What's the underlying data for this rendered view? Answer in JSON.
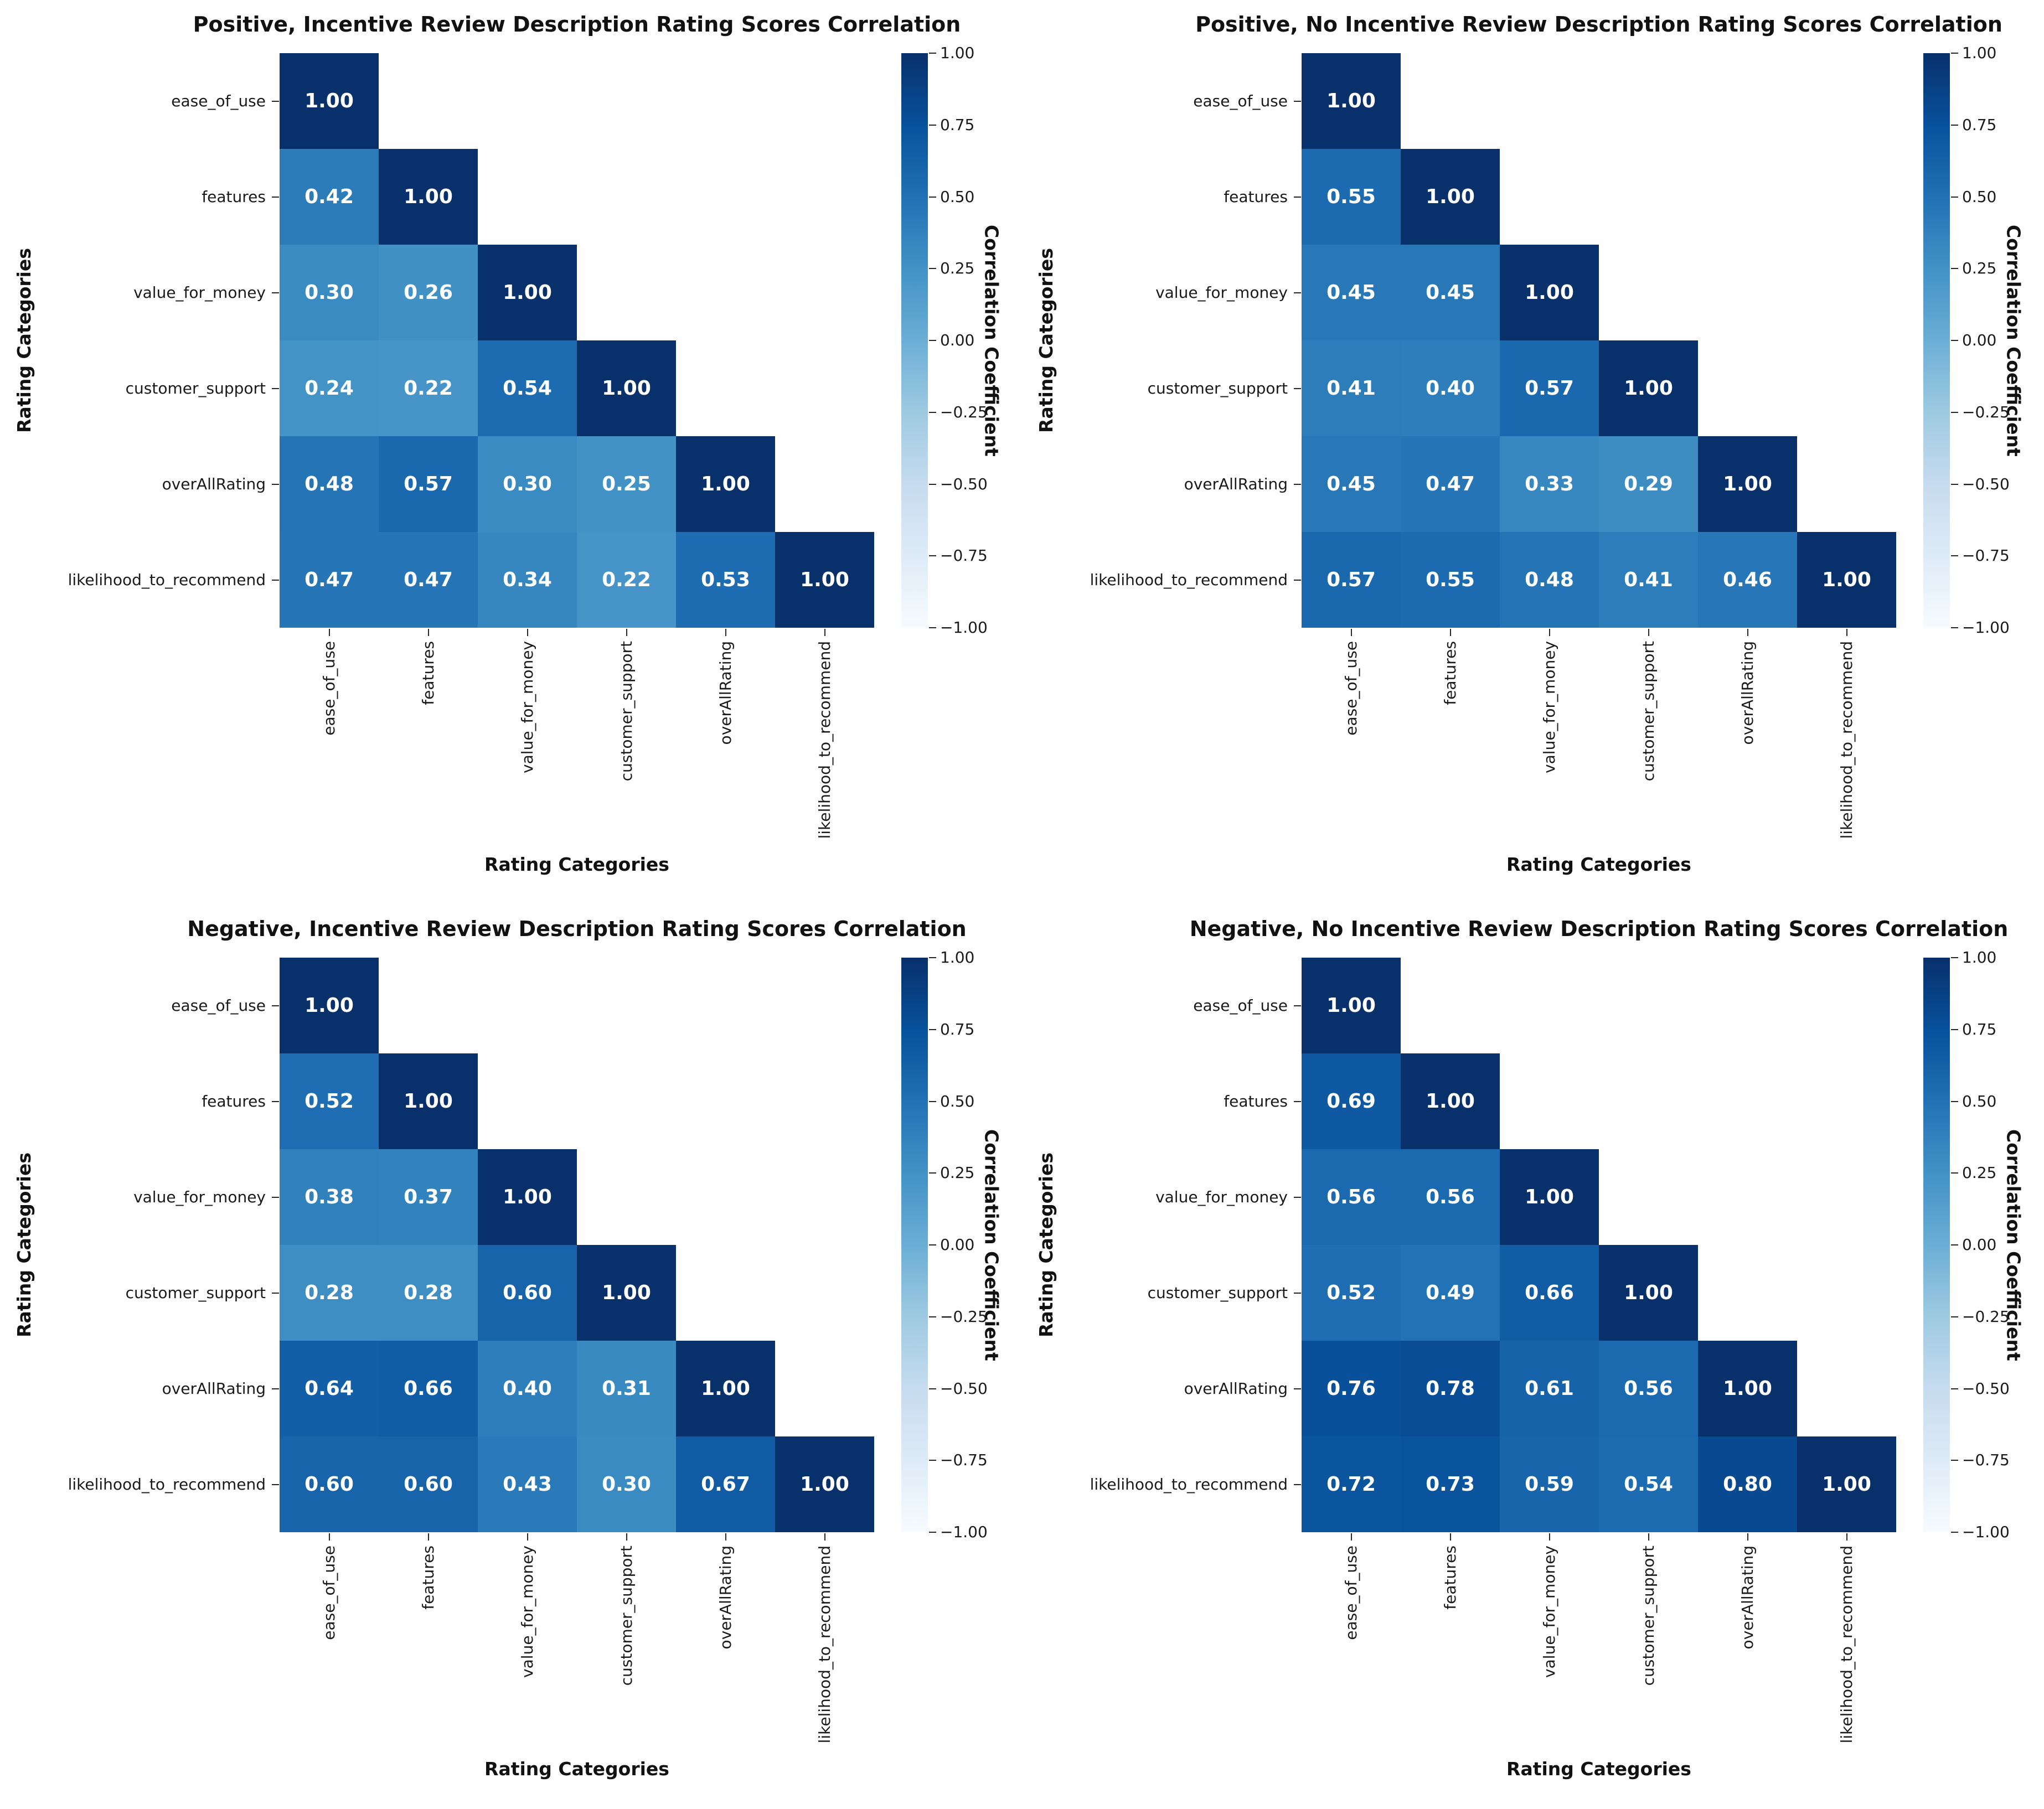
{
  "figure": {
    "background": "#ffffff",
    "shared_xlabel": "Rating Categories",
    "shared_ylabel": "Rating Categories",
    "shared_colorbar_label": "Correlation Coefficient",
    "colorbar_ticks": [
      {
        "value": 1.0,
        "label": "1.00"
      },
      {
        "value": 0.75,
        "label": "0.75"
      },
      {
        "value": 0.5,
        "label": "0.50"
      },
      {
        "value": 0.25,
        "label": "0.25"
      },
      {
        "value": 0.0,
        "label": "0.00"
      },
      {
        "value": -0.25,
        "label": "−0.25"
      },
      {
        "value": -0.5,
        "label": "−0.50"
      },
      {
        "value": -0.75,
        "label": "−0.75"
      },
      {
        "value": -1.0,
        "label": "−1.00"
      }
    ]
  },
  "colors": {
    "annot_text": "#ffffff",
    "tick_text": "#1a1a1a",
    "title_text": "#111111",
    "cmap_name": "Blues",
    "cmap_anchors": [
      [
        0.0,
        "#f7fbff"
      ],
      [
        0.125,
        "#deebf7"
      ],
      [
        0.25,
        "#c6dbef"
      ],
      [
        0.375,
        "#9ecae1"
      ],
      [
        0.5,
        "#6baed6"
      ],
      [
        0.625,
        "#4292c6"
      ],
      [
        0.75,
        "#2171b5"
      ],
      [
        0.875,
        "#08519c"
      ],
      [
        1.0,
        "#08306b"
      ]
    ]
  },
  "chart_data": [
    {
      "type": "heatmap",
      "title": "Positive, Incentive Review Description Rating Scores Correlation",
      "xlabel": "Rating Categories",
      "ylabel": "Rating Categories",
      "colorbar_label": "Correlation Coefficient",
      "vmin": -1,
      "vmax": 1,
      "mask": "upper-triangle",
      "categories": [
        "ease_of_use",
        "features",
        "value_for_money",
        "customer_support",
        "overAllRating",
        "likelihood_to_recommend"
      ],
      "matrix": [
        [
          1.0
        ],
        [
          0.42,
          1.0
        ],
        [
          0.3,
          0.26,
          1.0
        ],
        [
          0.24,
          0.22,
          0.54,
          1.0
        ],
        [
          0.48,
          0.57,
          0.3,
          0.25,
          1.0
        ],
        [
          0.47,
          0.47,
          0.34,
          0.22,
          0.53,
          1.0
        ]
      ]
    },
    {
      "type": "heatmap",
      "title": "Positive, No Incentive Review Description Rating Scores Correlation",
      "xlabel": "Rating Categories",
      "ylabel": "Rating Categories",
      "colorbar_label": "Correlation Coefficient",
      "vmin": -1,
      "vmax": 1,
      "mask": "upper-triangle",
      "categories": [
        "ease_of_use",
        "features",
        "value_for_money",
        "customer_support",
        "overAllRating",
        "likelihood_to_recommend"
      ],
      "matrix": [
        [
          1.0
        ],
        [
          0.55,
          1.0
        ],
        [
          0.45,
          0.45,
          1.0
        ],
        [
          0.41,
          0.4,
          0.57,
          1.0
        ],
        [
          0.45,
          0.47,
          0.33,
          0.29,
          1.0
        ],
        [
          0.57,
          0.55,
          0.48,
          0.41,
          0.46,
          1.0
        ]
      ]
    },
    {
      "type": "heatmap",
      "title": "Negative, Incentive Review Description Rating Scores Correlation",
      "xlabel": "Rating Categories",
      "ylabel": "Rating Categories",
      "colorbar_label": "Correlation Coefficient",
      "vmin": -1,
      "vmax": 1,
      "mask": "upper-triangle",
      "categories": [
        "ease_of_use",
        "features",
        "value_for_money",
        "customer_support",
        "overAllRating",
        "likelihood_to_recommend"
      ],
      "matrix": [
        [
          1.0
        ],
        [
          0.52,
          1.0
        ],
        [
          0.38,
          0.37,
          1.0
        ],
        [
          0.28,
          0.28,
          0.6,
          1.0
        ],
        [
          0.64,
          0.66,
          0.4,
          0.31,
          1.0
        ],
        [
          0.6,
          0.6,
          0.43,
          0.3,
          0.67,
          1.0
        ]
      ]
    },
    {
      "type": "heatmap",
      "title": "Negative, No Incentive Review Description Rating Scores Correlation",
      "xlabel": "Rating Categories",
      "ylabel": "Rating Categories",
      "colorbar_label": "Correlation Coefficient",
      "vmin": -1,
      "vmax": 1,
      "mask": "upper-triangle",
      "categories": [
        "ease_of_use",
        "features",
        "value_for_money",
        "customer_support",
        "overAllRating",
        "likelihood_to_recommend"
      ],
      "matrix": [
        [
          1.0
        ],
        [
          0.69,
          1.0
        ],
        [
          0.56,
          0.56,
          1.0
        ],
        [
          0.52,
          0.49,
          0.66,
          1.0
        ],
        [
          0.76,
          0.78,
          0.61,
          0.56,
          1.0
        ],
        [
          0.72,
          0.73,
          0.59,
          0.54,
          0.8,
          1.0
        ]
      ]
    }
  ]
}
